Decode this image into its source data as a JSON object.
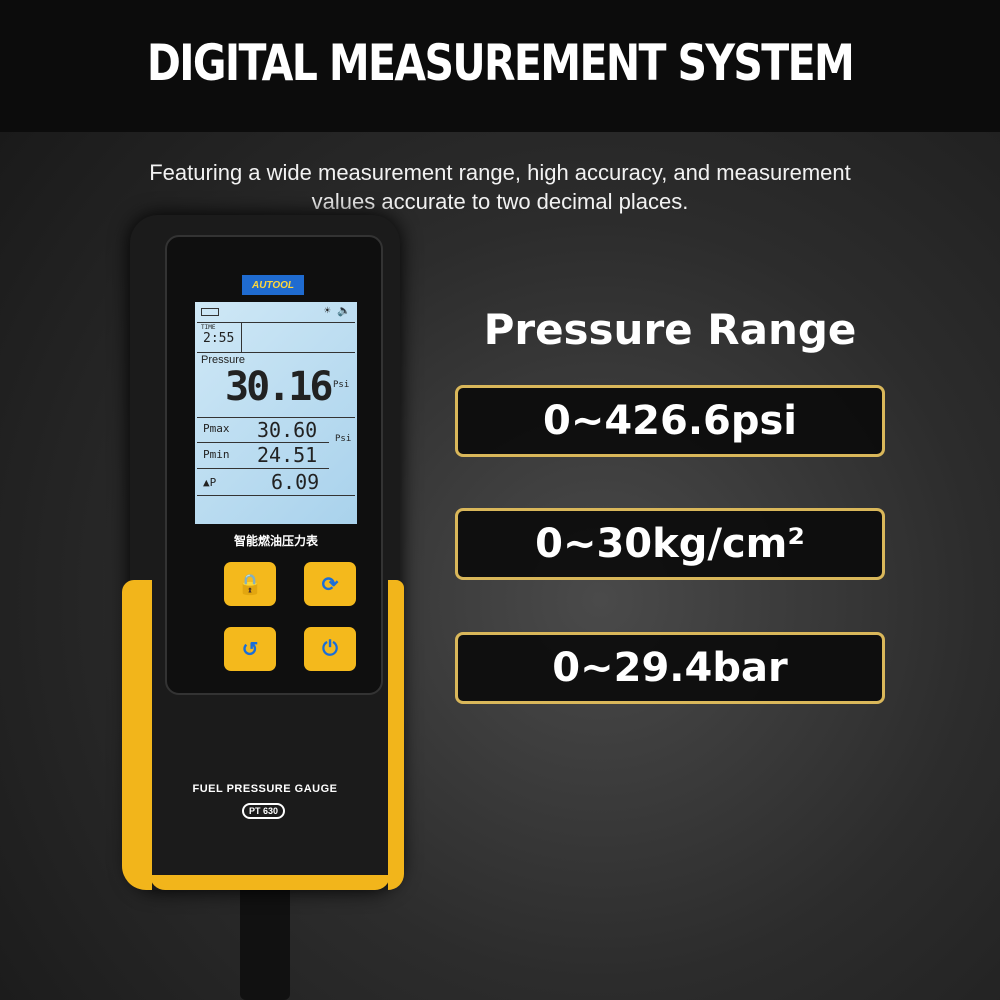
{
  "header": {
    "title": "DIGITAL MEASUREMENT SYSTEM",
    "subtitle_line1": "Featuring a wide measurement range, high accuracy, and measurement",
    "subtitle_line2": "values accurate to two decimal places."
  },
  "range": {
    "heading": "Pressure Range",
    "items": [
      "0~426.6psi",
      "0~30kg/cm²",
      "0~29.4bar"
    ],
    "border_color": "#d9b75a"
  },
  "device": {
    "logo": "AUTOOL",
    "screen": {
      "time_label": "TIME",
      "time": "2:55",
      "pressure_label": "Pressure",
      "pressure": "30.16",
      "unit": "Psi",
      "pmax_label": "Pmax",
      "pmax": "30.60",
      "pmin_label": "Pmin",
      "pmin": "24.51",
      "dp_label": "▲P",
      "dp": "6.09",
      "unit2": "Psi"
    },
    "chinese_label": "智能燃油压力表",
    "buttons": [
      {
        "icon": "lock-icon",
        "glyph": "🔒"
      },
      {
        "icon": "refresh-icon",
        "glyph": "⟳"
      },
      {
        "icon": "back-icon",
        "glyph": "↺"
      },
      {
        "icon": "power-icon",
        "glyph": "⏻"
      }
    ],
    "brand_text": "FUEL PRESSURE GAUGE",
    "model": "PT 630",
    "accent": "#f2b51b"
  }
}
